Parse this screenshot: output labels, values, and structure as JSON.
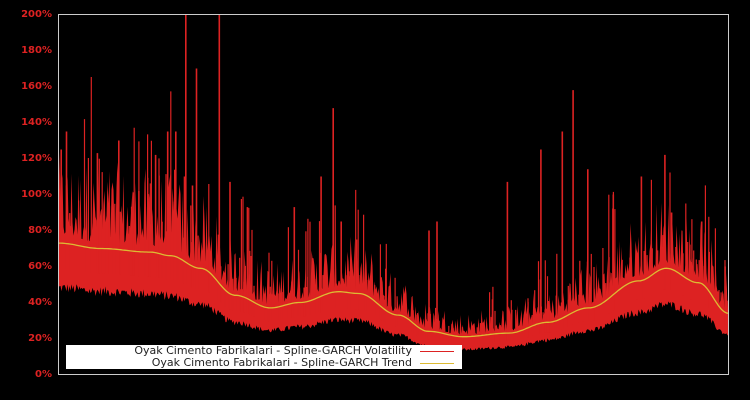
{
  "chart_data": {
    "type": "line",
    "title": "",
    "xlabel": "",
    "ylabel": "",
    "ylim": [
      0,
      200
    ],
    "y_unit": "%",
    "y_ticks": [
      "0%",
      "20%",
      "40%",
      "60%",
      "80%",
      "100%",
      "120%",
      "140%",
      "160%",
      "180%",
      "200%"
    ],
    "grid": false,
    "legend_position": "lower-left",
    "background": "#000000",
    "frame_color": "#cccccc",
    "series": [
      {
        "name": "Oyak Cimento Fabrikalari - Spline-GARCH Volatility",
        "color": "#dd2222",
        "description": "Daily conditional volatility; noisy, spikes above trend, floor roughly 0.65x trend",
        "spikes": [
          {
            "x": 0.012,
            "y": 135
          },
          {
            "x": 0.004,
            "y": 125
          },
          {
            "x": 0.058,
            "y": 123
          },
          {
            "x": 0.09,
            "y": 130
          },
          {
            "x": 0.12,
            "y": 102
          },
          {
            "x": 0.145,
            "y": 122
          },
          {
            "x": 0.163,
            "y": 135
          },
          {
            "x": 0.175,
            "y": 135
          },
          {
            "x": 0.188,
            "y": 110
          },
          {
            "x": 0.2,
            "y": 105
          },
          {
            "x": 0.19,
            "y": 200
          },
          {
            "x": 0.206,
            "y": 170
          },
          {
            "x": 0.24,
            "y": 200
          },
          {
            "x": 0.256,
            "y": 107
          },
          {
            "x": 0.282,
            "y": 93
          },
          {
            "x": 0.352,
            "y": 93
          },
          {
            "x": 0.392,
            "y": 110
          },
          {
            "x": 0.41,
            "y": 148
          },
          {
            "x": 0.422,
            "y": 85
          },
          {
            "x": 0.445,
            "y": 75
          },
          {
            "x": 0.553,
            "y": 80
          },
          {
            "x": 0.565,
            "y": 85
          },
          {
            "x": 0.67,
            "y": 107
          },
          {
            "x": 0.72,
            "y": 125
          },
          {
            "x": 0.768,
            "y": 158
          },
          {
            "x": 0.752,
            "y": 135
          },
          {
            "x": 0.79,
            "y": 114
          },
          {
            "x": 0.828,
            "y": 100
          },
          {
            "x": 0.87,
            "y": 110
          },
          {
            "x": 0.905,
            "y": 122
          },
          {
            "x": 0.915,
            "y": 90
          },
          {
            "x": 0.96,
            "y": 85
          },
          {
            "x": 0.995,
            "y": 60
          }
        ]
      },
      {
        "name": "Oyak Cimento Fabrikalari - Spline-GARCH Trend",
        "color": "#ddbb33",
        "x": [
          0.0,
          0.063,
          0.137,
          0.167,
          0.212,
          0.264,
          0.316,
          0.36,
          0.418,
          0.448,
          0.507,
          0.552,
          0.604,
          0.672,
          0.73,
          0.791,
          0.866,
          0.907,
          0.955,
          1.0
        ],
        "values": [
          73,
          70,
          68,
          66,
          59,
          44,
          37,
          40,
          46,
          45,
          33,
          24,
          21,
          23,
          29,
          37,
          52,
          59,
          51,
          34
        ]
      }
    ]
  },
  "legend": {
    "items": [
      {
        "label": "Oyak Cimento Fabrikalari - Spline-GARCH Volatility",
        "color": "#dd2222"
      },
      {
        "label": "Oyak Cimento Fabrikalari - Spline-GARCH Trend",
        "color": "#ddbb33"
      }
    ]
  }
}
